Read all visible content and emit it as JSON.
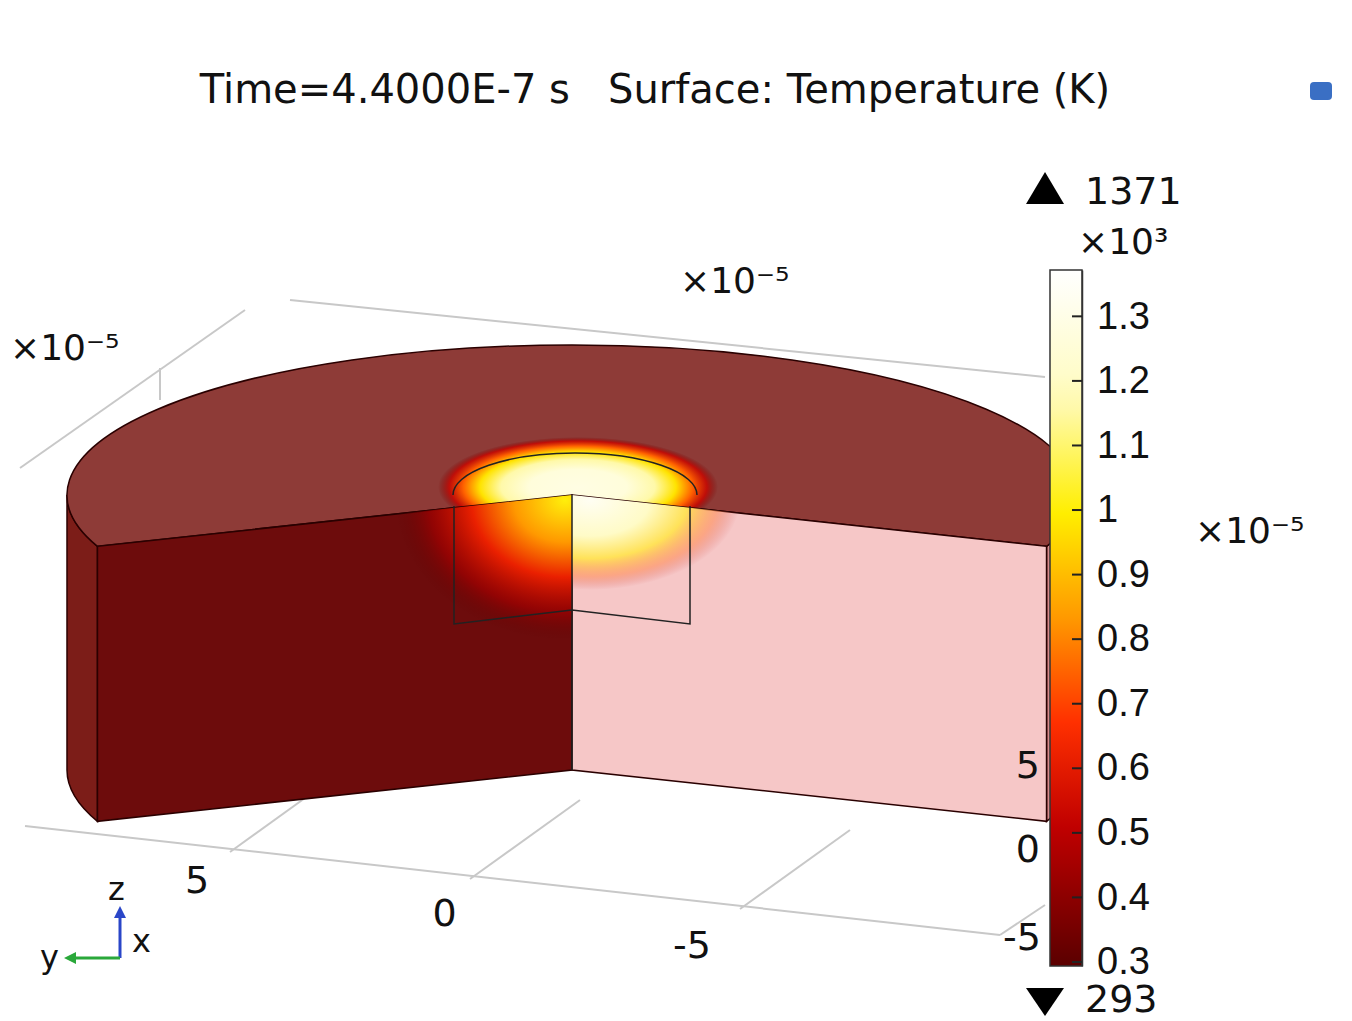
{
  "chart_data": {
    "type": "surface",
    "title": "Time=4.4000E-7 s   Surface: Temperature (K)",
    "axes": [
      {
        "name": "y",
        "multiplier": "×10⁻⁵",
        "ticks": [
          5,
          0,
          -5
        ]
      },
      {
        "name": "x",
        "multiplier": "×10⁻⁵",
        "ticks": [
          -5
        ]
      },
      {
        "name": "z",
        "multiplier": "×10⁻⁵",
        "ticks": [
          0,
          5
        ]
      }
    ],
    "colorbar": {
      "range": [
        293,
        1371
      ],
      "multiplier": "×10³",
      "ticks": [
        {
          "value": 300,
          "label": "0.3"
        },
        {
          "value": 400,
          "label": "0.4"
        },
        {
          "value": 500,
          "label": "0.5"
        },
        {
          "value": 600,
          "label": "0.6"
        },
        {
          "value": 700,
          "label": "0.7"
        },
        {
          "value": 800,
          "label": "0.8"
        },
        {
          "value": 900,
          "label": "0.9"
        },
        {
          "value": 1000,
          "label": "1"
        },
        {
          "value": 1100,
          "label": "1.1"
        },
        {
          "value": 1200,
          "label": "1.2"
        },
        {
          "value": 1300,
          "label": "1.3"
        }
      ]
    }
  }
}
